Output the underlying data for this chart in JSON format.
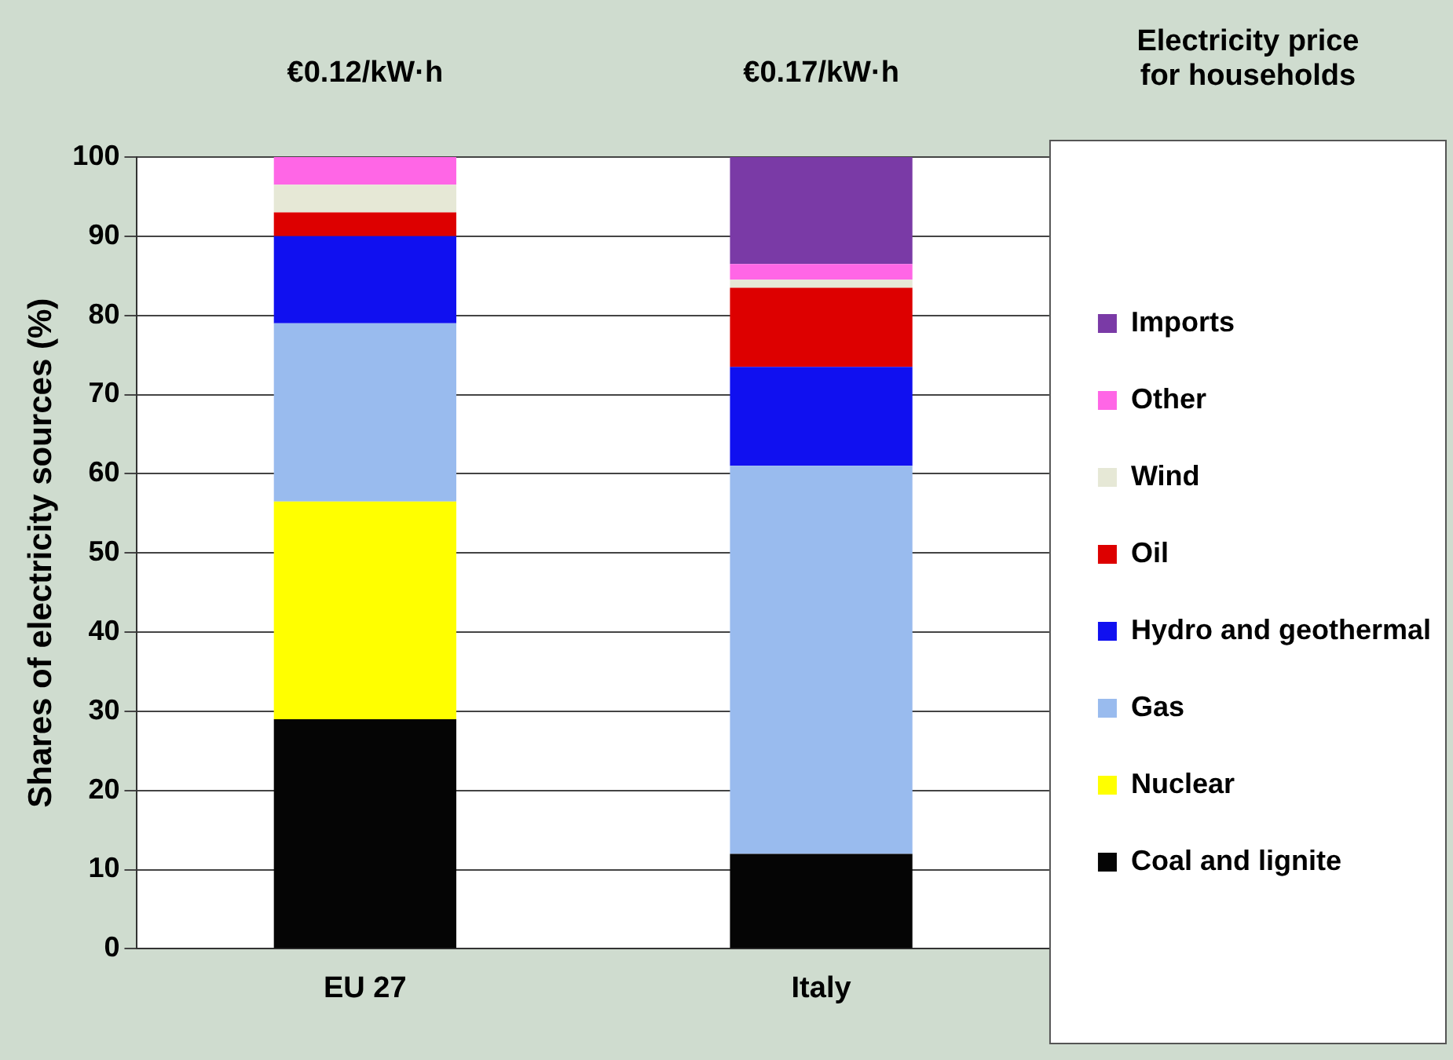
{
  "chart_data": {
    "type": "bar",
    "stacked": true,
    "categories": [
      "EU 27",
      "Italy"
    ],
    "series": [
      {
        "name": "Coal and lignite",
        "color": "#050505",
        "values": [
          29,
          12
        ]
      },
      {
        "name": "Nuclear",
        "color": "#ffff00",
        "values": [
          27.5,
          0
        ]
      },
      {
        "name": "Gas",
        "color": "#99bbee",
        "values": [
          22.5,
          49
        ]
      },
      {
        "name": "Hydro and geothermal",
        "color": "#1010f0",
        "values": [
          11,
          12.5
        ]
      },
      {
        "name": "Oil",
        "color": "#dd0000",
        "values": [
          3,
          10
        ]
      },
      {
        "name": "Wind",
        "color": "#e6e8d6",
        "values": [
          3.5,
          1
        ]
      },
      {
        "name": "Other",
        "color": "#ff66e6",
        "values": [
          3.5,
          2
        ]
      },
      {
        "name": "Imports",
        "color": "#7a3aa6",
        "values": [
          0,
          13.5
        ]
      }
    ],
    "ylabel": "Shares of electricity sources (%)",
    "ylim": [
      0,
      100
    ],
    "yticks": [
      0,
      10,
      20,
      30,
      40,
      50,
      60,
      70,
      80,
      90,
      100
    ],
    "grid": "y",
    "legend": "right",
    "annotations": [
      "€0.12/kW·h",
      "€0.17/kW·h",
      "Electricity price\nfor households"
    ]
  }
}
